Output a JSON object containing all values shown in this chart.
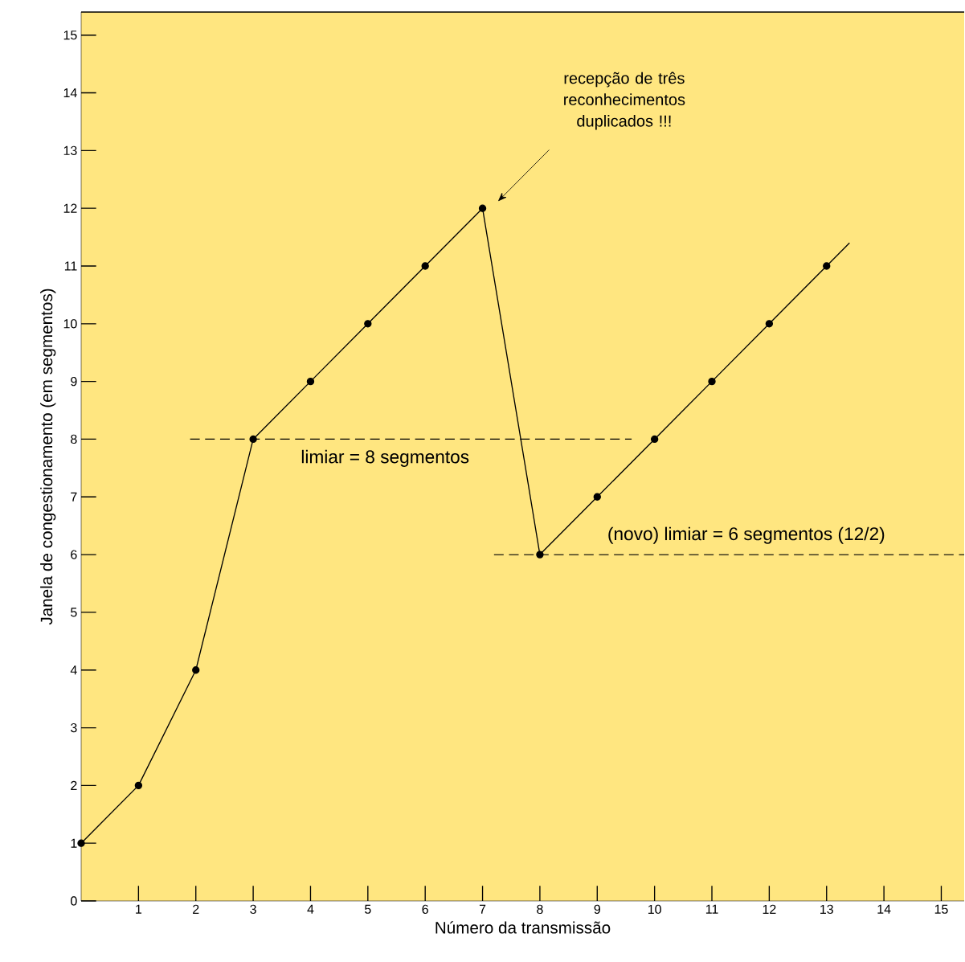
{
  "chart_data": {
    "type": "line",
    "xlabel": "Número da transmissão",
    "ylabel": "Janela de congestionamento (em segmentos)",
    "xlim": [
      0,
      15.4
    ],
    "ylim": [
      0,
      15.4
    ],
    "xticks": [
      1,
      2,
      3,
      4,
      5,
      6,
      7,
      8,
      9,
      10,
      11,
      12,
      13,
      14,
      15
    ],
    "yticks": [
      0,
      1,
      2,
      3,
      4,
      5,
      6,
      7,
      8,
      9,
      10,
      11,
      12,
      13,
      14,
      15
    ],
    "grid": false,
    "series": [
      {
        "x": [
          0,
          1,
          2,
          3,
          4,
          5,
          6,
          7,
          8,
          9,
          10,
          11,
          12,
          13
        ],
        "values": [
          1,
          2,
          4,
          8,
          9,
          10,
          11,
          12,
          6,
          7,
          8,
          9,
          10,
          11
        ],
        "color": "#000000",
        "marker": "circle",
        "line_style": "solid"
      },
      {
        "x": [
          13,
          13.4
        ],
        "values": [
          11,
          11.4
        ],
        "color": "#000000",
        "marker": "none",
        "line_style": "solid"
      },
      {
        "x": [
          1.9,
          9.6
        ],
        "values": [
          8,
          8
        ],
        "color": "#000000",
        "marker": "none",
        "line_style": "dashed"
      },
      {
        "x": [
          7.2,
          15.4
        ],
        "values": [
          6,
          6
        ],
        "color": "#000000",
        "marker": "none",
        "line_style": "dashed"
      }
    ],
    "annotations": [
      "recepção de três reconhecimentos duplicados !!!",
      {
        "text": "limiar = 8 segmentos",
        "x": 5.3,
        "y": 8
      },
      {
        "text": "(novo) limiar = 6 segmentos (12/2)",
        "x": 11.6,
        "y": 6
      }
    ]
  }
}
